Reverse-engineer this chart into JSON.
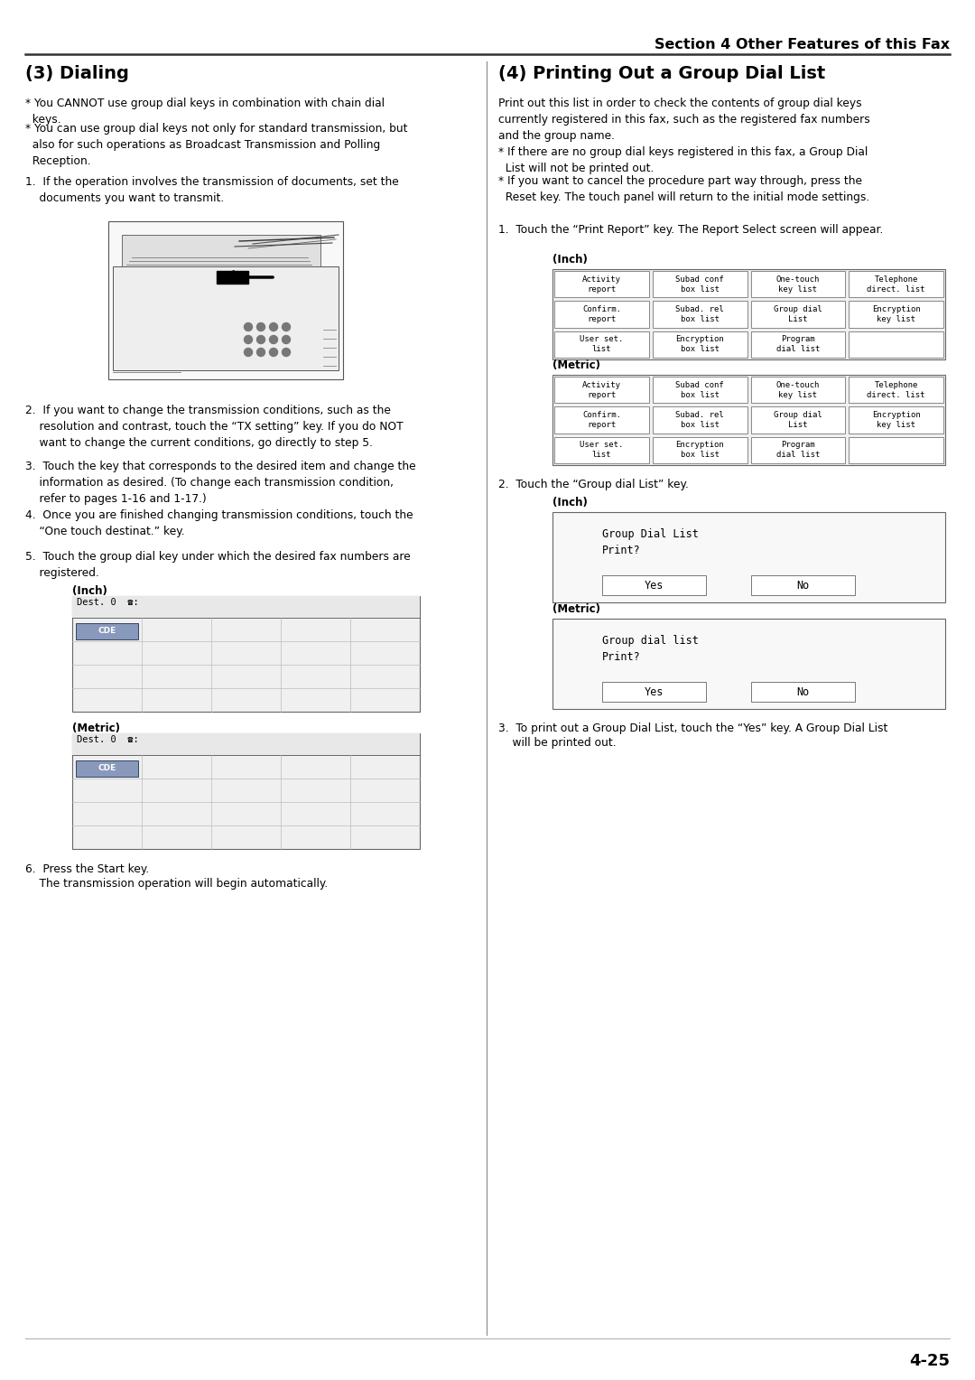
{
  "page_title": "Section 4 Other Features of this Fax",
  "page_number": "4-25",
  "left_section_title": "(3) Dialing",
  "right_section_title": "(4) Printing Out a Group Dial List",
  "left_bullet1": "* You CANNOT use group dial keys in combination with chain dial\n  keys.",
  "left_bullet2": "* You can use group dial keys not only for standard transmission, but\n  also for such operations as Broadcast Transmission and Polling\n  Reception.",
  "left_step1": "1.  If the operation involves the transmission of documents, set the\n    documents you want to transmit.",
  "left_step2": "2.  If you want to change the transmission conditions, such as the\n    resolution and contrast, touch the “TX setting” key. If you do NOT\n    want to change the current conditions, go directly to step 5.",
  "left_step3": "3.  Touch the key that corresponds to the desired item and change the\n    information as desired. (To change each transmission condition,\n    refer to pages 1-16 and 1-17.)",
  "left_step4": "4.  Once you are finished changing transmission conditions, touch the\n    “One touch destinat.” key.",
  "left_step5": "5.  Touch the group dial key under which the desired fax numbers are\n    registered.",
  "left_step6_a": "6.  Press the Start key.",
  "left_step6_b": "    The transmission operation will begin automatically.",
  "right_intro": "Print out this list in order to check the contents of group dial keys\ncurrently registered in this fax, such as the registered fax numbers\nand the group name.",
  "right_bullet1": "* If there are no group dial keys registered in this fax, a Group Dial\n  List will not be printed out.",
  "right_bullet2": "* If you want to cancel the procedure part way through, press the\n  Reset key. The touch panel will return to the initial mode settings.",
  "right_step1": "1.  Touch the “Print Report” key. The Report Select screen will appear.",
  "right_step2": "2.  Touch the “Group dial List” key.",
  "right_step3a": "3.  To print out a Group Dial List, touch the “Yes” key. A Group Dial List",
  "right_step3b": "    will be printed out.",
  "inch_label": "(Inch)",
  "metric_label": "(Metric)",
  "report_btns_r1": [
    "Activity\nreport",
    "Subad conf\nbox list",
    "One-touch\nkey list",
    "Telephone\ndirect. list"
  ],
  "report_btns_r2": [
    "Confirm.\nreport",
    "Subad. rel\nbox list",
    "Group dial\nList",
    "Encryption\nkey list"
  ],
  "report_btns_r3": [
    "User set.\nlist",
    "Encryption\nbox list",
    "Program\ndial list",
    ""
  ],
  "group_dial_inch": [
    "Group Dial List",
    "Print?"
  ],
  "group_dial_metric": [
    "Group dial list",
    "Print?"
  ],
  "yes_no": [
    "Yes",
    "No"
  ],
  "dest_text": "Dest. 0  ☎:",
  "cde_text": "CDE",
  "bg": "#ffffff",
  "fg": "#000000",
  "screen_border": "#666666",
  "screen_bg": "#f8f8f8",
  "btn_border": "#777777",
  "btn_bg": "#ffffff",
  "cde_bg": "#8899bb",
  "header_line": "#333333",
  "divider": "#888888"
}
